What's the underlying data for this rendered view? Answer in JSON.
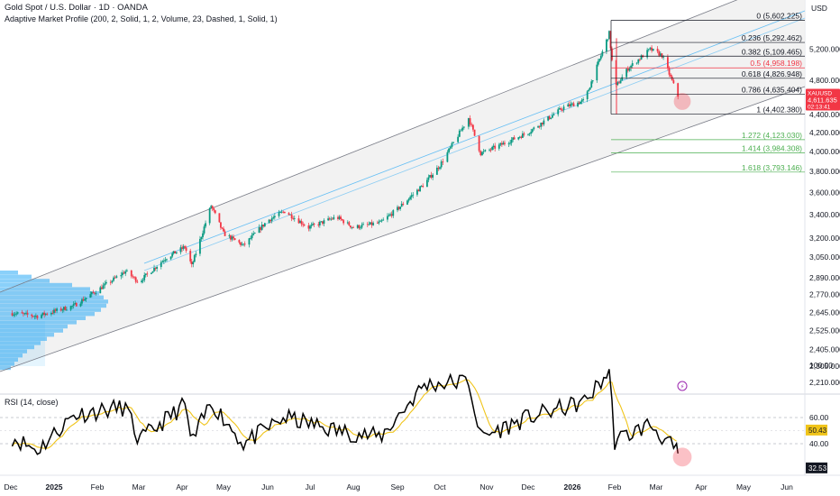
{
  "header": {
    "title": "Gold Spot / U.S. Dollar · 1D · OANDA",
    "indicator": "Adaptive Market Profile (200, 2, Solid, 1, 2, Volume, 23, Dashed, 1, Solid, 1)"
  },
  "currency": "USD",
  "price_badge": {
    "symbol": "XAUUSD",
    "value": "4,611.635",
    "timer": "02:13:41"
  },
  "rsi": {
    "title": "RSI (14, close)",
    "rsi_value": "32.53",
    "ma_value": "50.43"
  },
  "colors": {
    "up": "#089981",
    "down": "#f23645",
    "profile": "#2aa9f5",
    "fib_ext": "#4caf50",
    "rsi_ma": "#f0c419"
  },
  "chart_data": [
    {
      "type": "candlestick",
      "title": "Gold Spot / U.S. Dollar · 1D · OANDA",
      "y_axis_labels": [
        "5,200.000",
        "4,800.000",
        "4,400.000",
        "4,200.000",
        "4,000.000",
        "3,800.000",
        "3,600.000",
        "3,400.000",
        "3,200.000",
        "3,050.000",
        "2,890.000",
        "2,770.000",
        "2,645.000",
        "2,525.000",
        "2,405.000",
        "2,305.000",
        "2,210.000"
      ],
      "x_axis_labels": [
        "Dec",
        "2025",
        "Feb",
        "Mar",
        "Apr",
        "May",
        "Jun",
        "Jul",
        "Aug",
        "Sep",
        "Oct",
        "Nov",
        "Dec",
        "2026",
        "Feb",
        "Mar",
        "Apr",
        "May",
        "Jun"
      ],
      "scale": "log",
      "close_series": [
        {
          "x": "2024-12-02",
          "y": 2640
        },
        {
          "x": "2024-12-20",
          "y": 2620
        },
        {
          "x": "2025-01-15",
          "y": 2690
        },
        {
          "x": "2025-02-01",
          "y": 2800
        },
        {
          "x": "2025-02-20",
          "y": 2940
        },
        {
          "x": "2025-03-01",
          "y": 2860
        },
        {
          "x": "2025-03-20",
          "y": 3040
        },
        {
          "x": "2025-04-03",
          "y": 3130
        },
        {
          "x": "2025-04-08",
          "y": 2980
        },
        {
          "x": "2025-04-22",
          "y": 3480
        },
        {
          "x": "2025-05-01",
          "y": 3240
        },
        {
          "x": "2025-05-15",
          "y": 3140
        },
        {
          "x": "2025-06-01",
          "y": 3350
        },
        {
          "x": "2025-06-13",
          "y": 3430
        },
        {
          "x": "2025-06-30",
          "y": 3290
        },
        {
          "x": "2025-07-20",
          "y": 3380
        },
        {
          "x": "2025-08-01",
          "y": 3290
        },
        {
          "x": "2025-08-20",
          "y": 3330
        },
        {
          "x": "2025-09-01",
          "y": 3450
        },
        {
          "x": "2025-09-20",
          "y": 3680
        },
        {
          "x": "2025-10-01",
          "y": 3860
        },
        {
          "x": "2025-10-20",
          "y": 4360
        },
        {
          "x": "2025-10-28",
          "y": 3980
        },
        {
          "x": "2025-11-10",
          "y": 4060
        },
        {
          "x": "2025-12-01",
          "y": 4200
        },
        {
          "x": "2025-12-26",
          "y": 4480
        },
        {
          "x": "2026-01-10",
          "y": 4560
        },
        {
          "x": "2026-01-28",
          "y": 5420
        },
        {
          "x": "2026-02-01",
          "y": 4700
        },
        {
          "x": "2026-02-10",
          "y": 4950
        },
        {
          "x": "2026-02-25",
          "y": 5200
        },
        {
          "x": "2026-03-05",
          "y": 5120
        },
        {
          "x": "2026-03-16",
          "y": 4611.635
        }
      ],
      "fibonacci_levels": [
        {
          "ratio": "0",
          "label": "0 (5,602.225)"
        },
        {
          "ratio": "0.236",
          "label": "0.236 (5,292.462)"
        },
        {
          "ratio": "0.382",
          "label": "0.382 (5,109.465)"
        },
        {
          "ratio": "0.5",
          "label": "0.5 (4,958.198)"
        },
        {
          "ratio": "0.618",
          "label": "0.618 (4,826.948)"
        },
        {
          "ratio": "0.786",
          "label": "0.786 (4,635.404)"
        },
        {
          "ratio": "1",
          "label": "1 (4,402.380)"
        },
        {
          "ratio": "1.272",
          "label": "1.272 (4,123.030)"
        },
        {
          "ratio": "1.414",
          "label": "1.414 (3,984.308)"
        },
        {
          "ratio": "1.618",
          "label": "1.618 (3,793.146)"
        }
      ]
    },
    {
      "type": "line",
      "title": "RSI (14, close)",
      "y_axis_labels": [
        "100.00",
        "60.00",
        "40.00"
      ],
      "ylim": [
        0,
        100
      ],
      "series": [
        {
          "name": "RSI",
          "values": [
            {
              "x": "2024-12-02",
              "y": 45
            },
            {
              "x": "2024-12-20",
              "y": 35
            },
            {
              "x": "2025-01-15",
              "y": 62
            },
            {
              "x": "2025-02-20",
              "y": 68
            },
            {
              "x": "2025-03-01",
              "y": 42
            },
            {
              "x": "2025-04-03",
              "y": 70
            },
            {
              "x": "2025-04-08",
              "y": 40
            },
            {
              "x": "2025-04-22",
              "y": 72
            },
            {
              "x": "2025-05-15",
              "y": 40
            },
            {
              "x": "2025-06-13",
              "y": 60
            },
            {
              "x": "2025-07-20",
              "y": 50
            },
            {
              "x": "2025-08-20",
              "y": 45
            },
            {
              "x": "2025-09-20",
              "y": 85
            },
            {
              "x": "2025-10-20",
              "y": 88
            },
            {
              "x": "2025-10-28",
              "y": 45
            },
            {
              "x": "2025-12-01",
              "y": 60
            },
            {
              "x": "2026-01-10",
              "y": 72
            },
            {
              "x": "2026-01-28",
              "y": 95
            },
            {
              "x": "2026-02-01",
              "y": 42
            },
            {
              "x": "2026-02-25",
              "y": 55
            },
            {
              "x": "2026-03-16",
              "y": 32.53
            }
          ]
        }
      ]
    }
  ]
}
